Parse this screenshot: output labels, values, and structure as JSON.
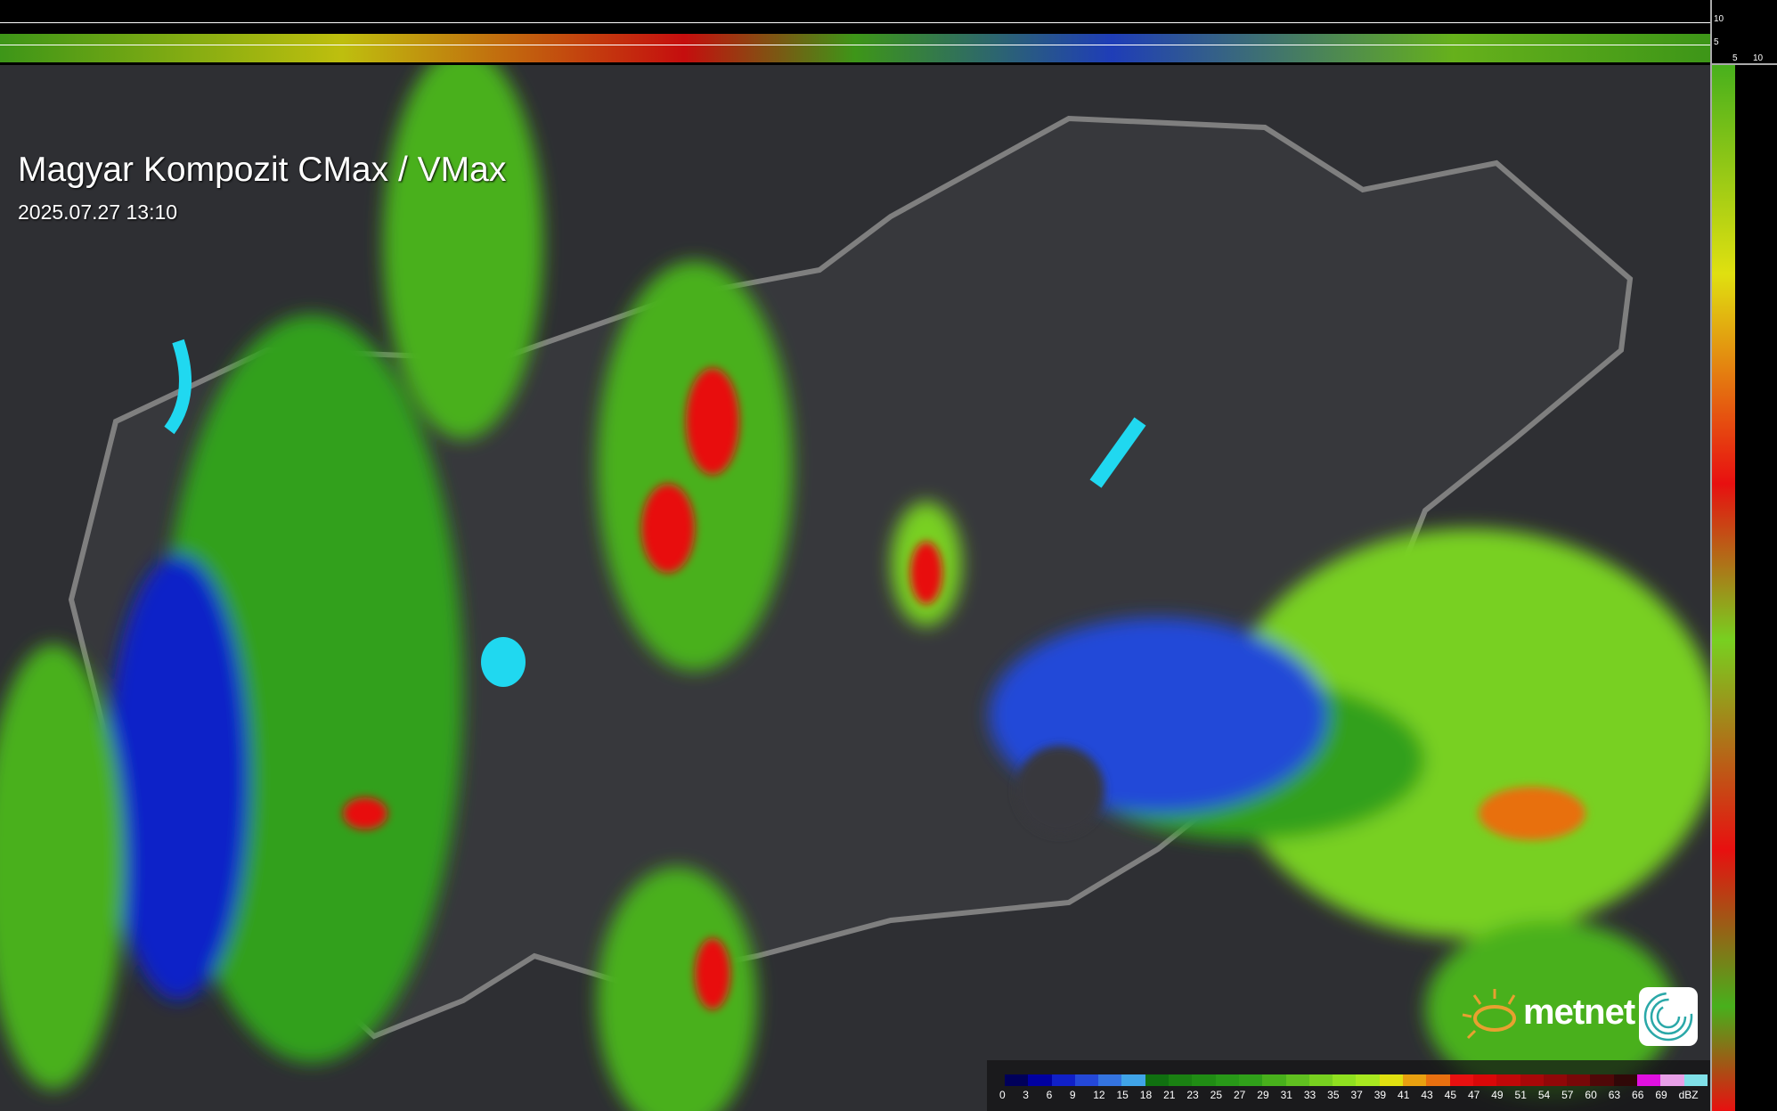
{
  "header": {
    "title": "Magyar Kompozit CMax / VMax",
    "timestamp": "2025.07.27 13:10"
  },
  "profile_axes": {
    "top_ticks": [
      "10",
      "5"
    ],
    "right_ticks": [
      "5",
      "10"
    ]
  },
  "legend": {
    "unit": "dBZ",
    "labels": [
      "0",
      "3",
      "6",
      "9",
      "12",
      "15",
      "18",
      "21",
      "23",
      "25",
      "27",
      "29",
      "31",
      "33",
      "35",
      "37",
      "39",
      "41",
      "43",
      "45",
      "47",
      "49",
      "51",
      "54",
      "57",
      "60",
      "63",
      "66",
      "69"
    ],
    "colors": [
      "#00005a",
      "#0000a0",
      "#1020c8",
      "#2448d8",
      "#3474e0",
      "#40a4e8",
      "#107010",
      "#1a8012",
      "#208c14",
      "#289818",
      "#30a01a",
      "#48b01c",
      "#60c020",
      "#78d020",
      "#90e020",
      "#a8e820",
      "#e0e010",
      "#e8a010",
      "#e87010",
      "#e81010",
      "#d80808",
      "#c00808",
      "#a80808",
      "#900808",
      "#780808",
      "#500808",
      "#300808",
      "#e010e0",
      "#e8a0e8",
      "#80e0e8"
    ]
  },
  "branding": {
    "logo_text": "metnet",
    "icon": "metnet-swirl-icon"
  }
}
